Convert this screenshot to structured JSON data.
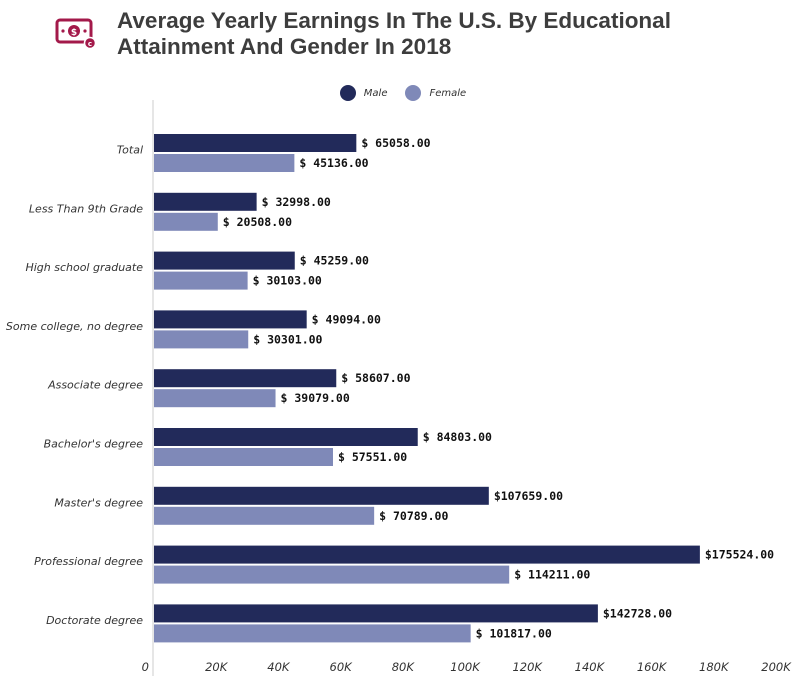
{
  "title": "Average Yearly Earnings In The U.S. By Educational Attainment And Gender In 2018",
  "logo_icon": "money-bill-icon",
  "colors": {
    "male": "#222a5a",
    "female": "#7f89b8",
    "logo": "#a3194a",
    "axis": "#cccccc"
  },
  "chart_data": {
    "type": "bar",
    "orientation": "horizontal",
    "title": "Average Yearly Earnings In The U.S. By Educational Attainment And Gender In 2018",
    "categories": [
      "Total",
      "Less Than 9th Grade",
      "High school graduate",
      "Some college, no degree",
      "Associate degree",
      "Bachelor's degree",
      "Master's degree",
      "Professional degree",
      "Doctorate degree"
    ],
    "series": [
      {
        "name": "Male",
        "values": [
          65058,
          32998,
          45259,
          49094,
          58607,
          84803,
          107659,
          175524,
          142728
        ],
        "labels": [
          "$  65058.00",
          "$  32998.00",
          "$  45259.00",
          "$  49094.00",
          "$  58607.00",
          "$  84803.00",
          "$107659.00",
          "$175524.00",
          "$142728.00"
        ]
      },
      {
        "name": "Female",
        "values": [
          45136,
          20508,
          30103,
          30301,
          39079,
          57551,
          70789,
          114211,
          101817
        ],
        "labels": [
          "$  45136.00",
          "$  20508.00",
          "$  30103.00",
          "$  30301.00",
          "$  39079.00",
          "$  57551.00",
          "$  70789.00",
          "$ 114211.00",
          "$ 101817.00"
        ]
      }
    ],
    "xlim": [
      0,
      200000
    ],
    "xticks": [
      0,
      20000,
      40000,
      60000,
      80000,
      100000,
      120000,
      140000,
      160000,
      180000,
      200000
    ],
    "xtick_labels": [
      "0",
      "20K",
      "40K",
      "60K",
      "80K",
      "100K",
      "120K",
      "140K",
      "160K",
      "180K",
      "200K"
    ],
    "legend": "top-center",
    "grid": false
  }
}
